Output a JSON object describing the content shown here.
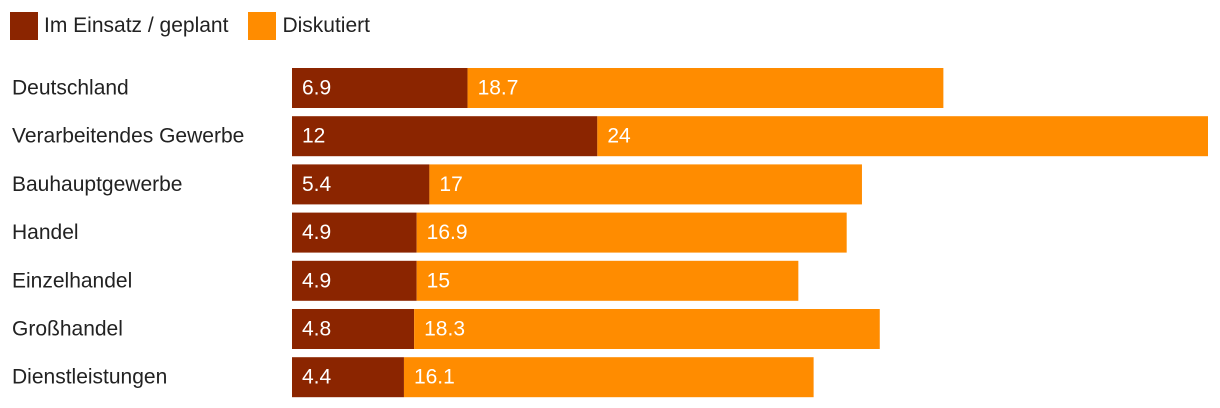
{
  "chart_data": {
    "type": "bar",
    "orientation": "horizontal",
    "stacked": true,
    "categories": [
      "Deutschland",
      "Verarbeitendes Gewerbe",
      "Bauhauptgewerbe",
      "Handel",
      "Einzelhandel",
      "Großhandel",
      "Dienstleistungen"
    ],
    "series": [
      {
        "name": "Im Einsatz / geplant",
        "color": "#8b2500",
        "values": [
          6.9,
          12,
          5.4,
          4.9,
          4.9,
          4.8,
          4.4
        ],
        "labels": [
          "6.9",
          "12",
          "5.4",
          "4.9",
          "4.9",
          "4.8",
          "4.4"
        ]
      },
      {
        "name": "Diskutiert",
        "color": "#ff8c00",
        "values": [
          18.7,
          24,
          17,
          16.9,
          15,
          18.3,
          16.1
        ],
        "labels": [
          "18.7",
          "24",
          "17",
          "16.9",
          "15",
          "18.3",
          "16.1"
        ]
      }
    ],
    "legend_position": "top-left",
    "grid": false,
    "xlim": [
      0,
      36
    ]
  }
}
